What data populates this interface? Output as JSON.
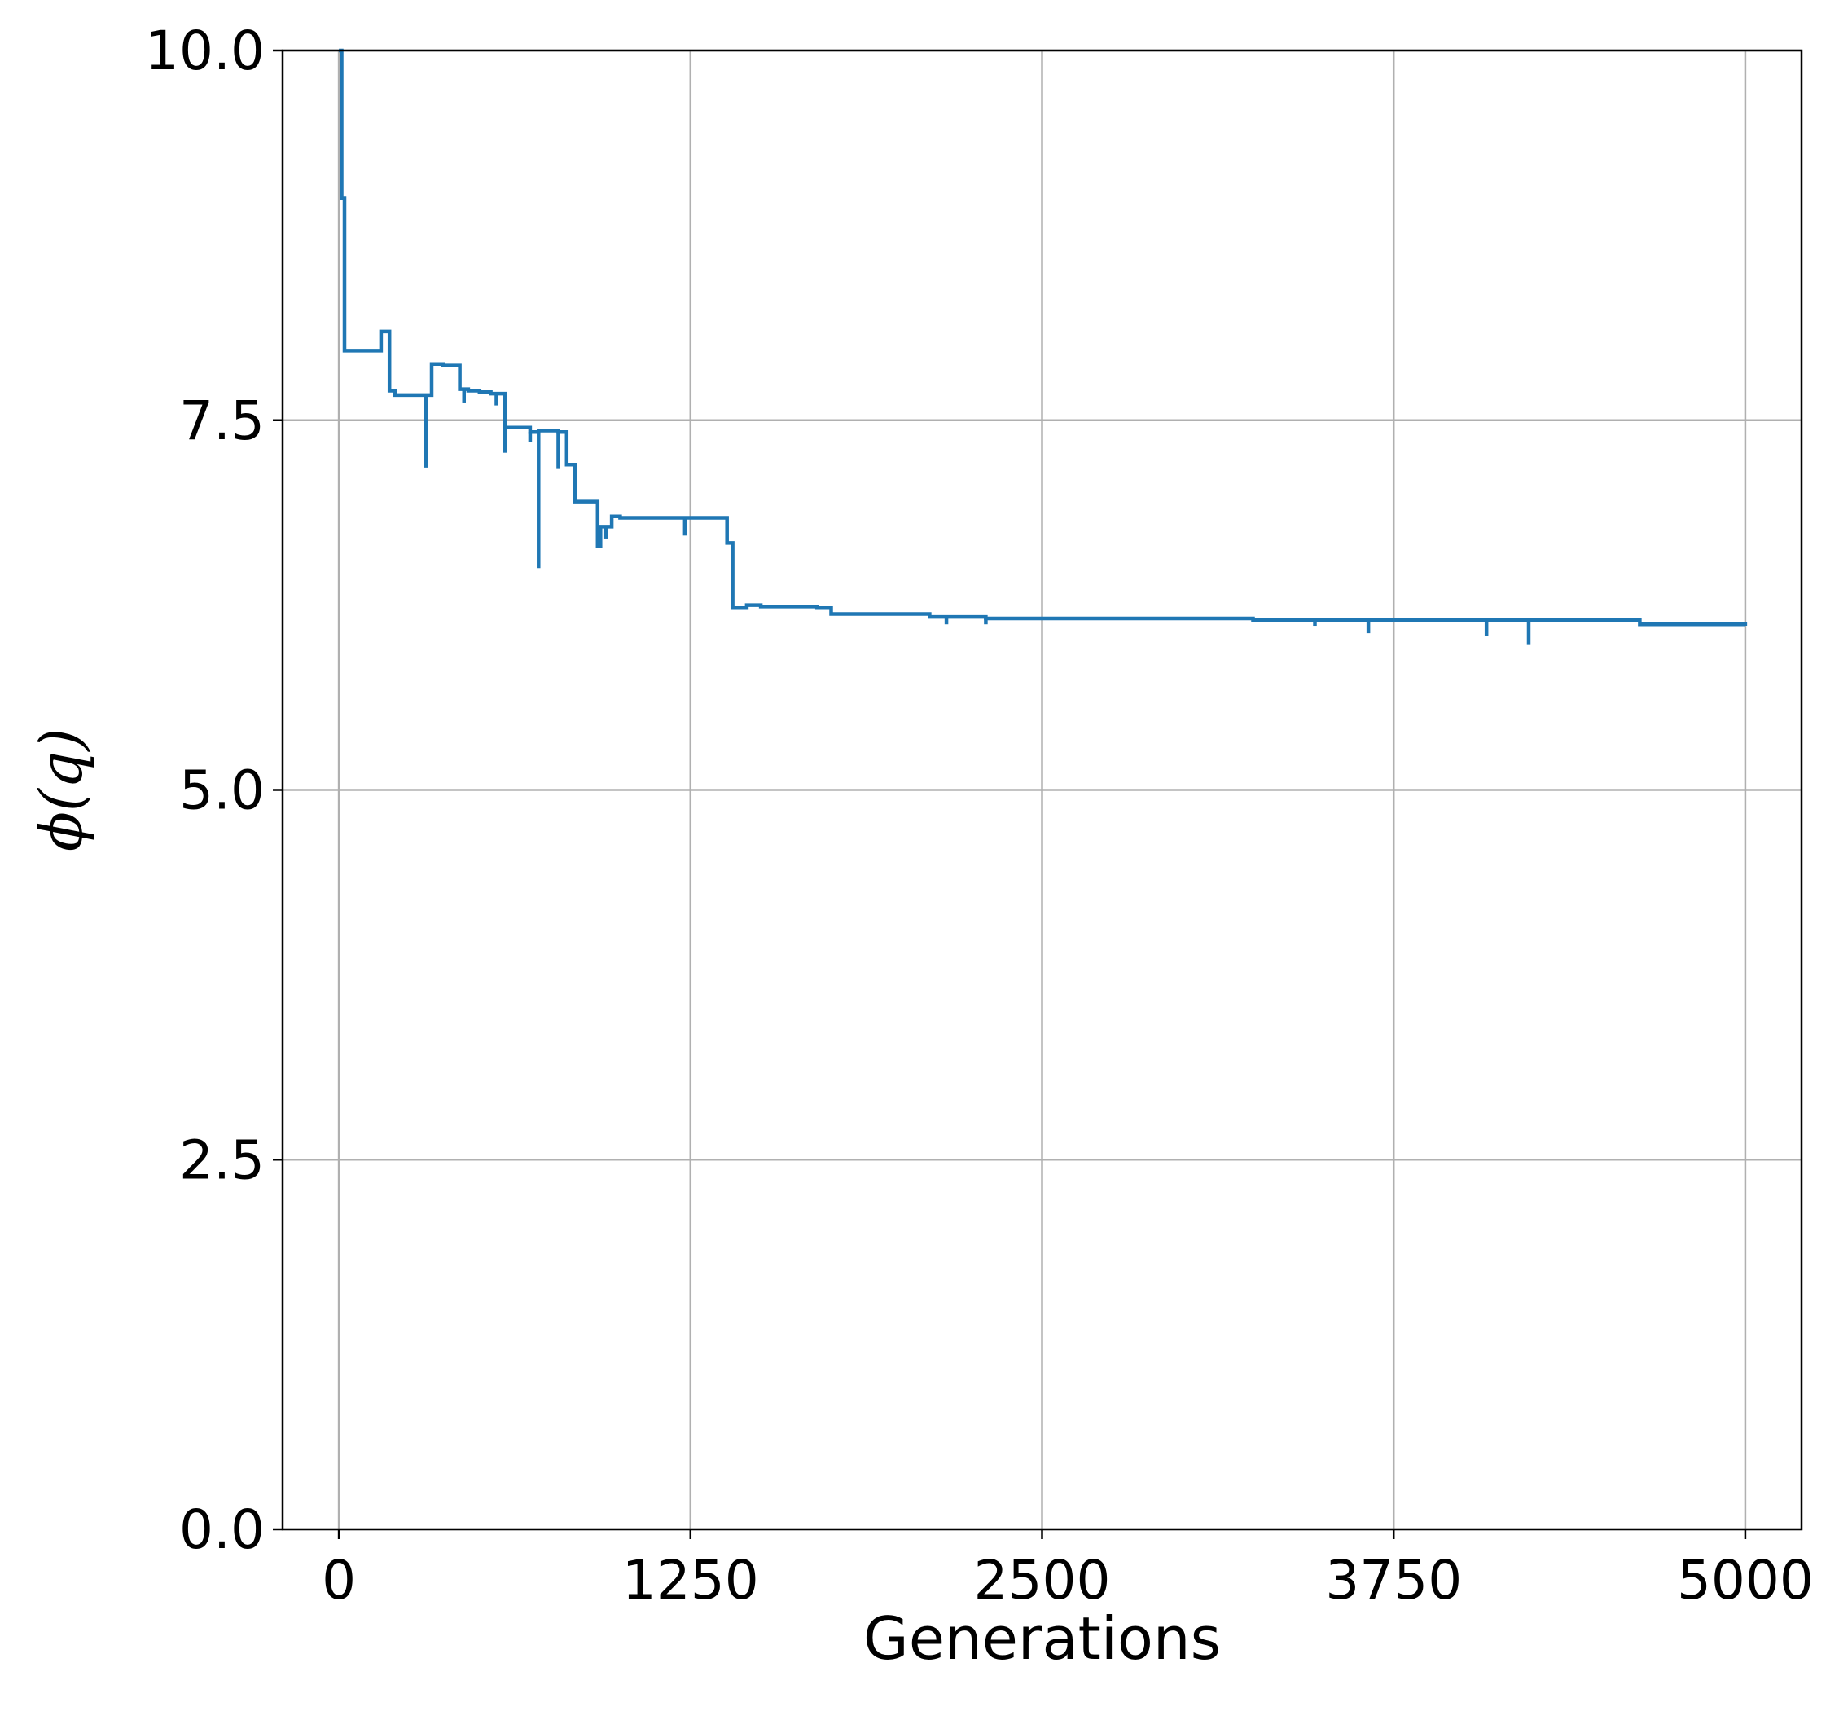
{
  "chart_data": {
    "type": "line",
    "xlabel": "Generations",
    "ylabel": "ϕ(q)",
    "xlim": [
      -200,
      5200
    ],
    "ylim": [
      0,
      10
    ],
    "x_ticks": [
      0,
      1250,
      2500,
      3750,
      5000
    ],
    "x_tick_labels": [
      "0",
      "1250",
      "2500",
      "3750",
      "5000"
    ],
    "y_ticks": [
      0,
      2.5,
      5,
      7.5,
      10
    ],
    "y_tick_labels": [
      "0.0",
      "2.5",
      "5.0",
      "7.5",
      "10.0"
    ],
    "grid": true,
    "color": "#1f77b4",
    "series": [
      {
        "step": true,
        "x": [
          0,
          10,
          20,
          120,
          150,
          160,
          180,
          200,
          250,
          310,
          330,
          370,
          400,
          430,
          440,
          460,
          500,
          540,
          560,
          590,
          620,
          680,
          710,
          720,
          780,
          810,
          840,
          870,
          920,
          930,
          970,
          1000,
          1100,
          1250,
          1310,
          1380,
          1400,
          1450,
          1500,
          1550,
          1700,
          1750,
          1850,
          2000,
          2100,
          2200,
          2300,
          2500,
          2800,
          3000,
          3250,
          3500,
          3750,
          4000,
          4200,
          4400,
          4600,
          4625,
          4750,
          4900,
          5000
        ],
        "y": [
          10.0,
          9.0,
          7.97,
          7.97,
          8.1,
          8.1,
          7.7,
          7.67,
          7.67,
          7.67,
          7.88,
          7.87,
          7.87,
          7.71,
          7.71,
          7.7,
          7.69,
          7.68,
          7.68,
          7.45,
          7.45,
          7.42,
          7.43,
          7.43,
          7.42,
          7.2,
          6.95,
          6.95,
          6.65,
          6.78,
          6.85,
          6.84,
          6.84,
          6.84,
          6.84,
          6.67,
          6.23,
          6.25,
          6.24,
          6.24,
          6.23,
          6.19,
          6.19,
          6.19,
          6.17,
          6.17,
          6.16,
          6.16,
          6.16,
          6.16,
          6.15,
          6.15,
          6.15,
          6.15,
          6.15,
          6.15,
          6.15,
          6.12,
          6.12,
          6.12,
          6.11
        ]
      }
    ],
    "spikes": [
      {
        "x": 310,
        "y": 7.18
      },
      {
        "x": 445,
        "y": 7.62
      },
      {
        "x": 560,
        "y": 7.6
      },
      {
        "x": 590,
        "y": 7.28
      },
      {
        "x": 680,
        "y": 7.35
      },
      {
        "x": 710,
        "y": 6.5
      },
      {
        "x": 780,
        "y": 7.17
      },
      {
        "x": 950,
        "y": 6.7
      },
      {
        "x": 1230,
        "y": 6.72
      },
      {
        "x": 2160,
        "y": 6.12
      },
      {
        "x": 2300,
        "y": 6.12
      },
      {
        "x": 3470,
        "y": 6.11
      },
      {
        "x": 3660,
        "y": 6.06
      },
      {
        "x": 4080,
        "y": 6.04
      },
      {
        "x": 4230,
        "y": 5.98
      }
    ]
  }
}
